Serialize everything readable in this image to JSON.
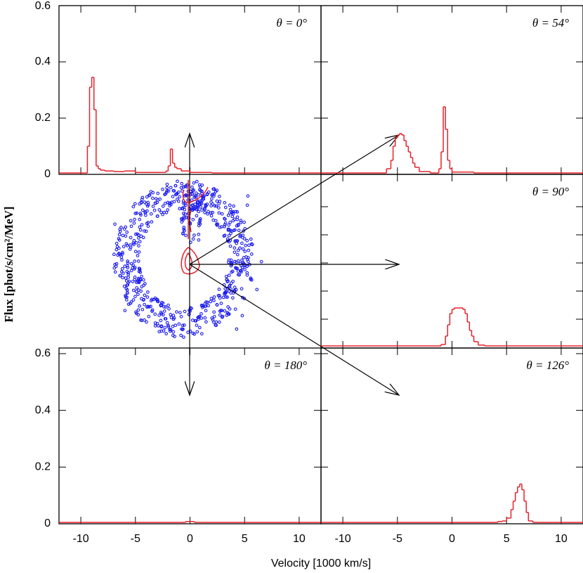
{
  "figure": {
    "xlabel": "Velocity [1000 km/s]",
    "ylabel": "Flux [phot/s/cm²/MeV]"
  },
  "chart_data": [
    {
      "type": "line",
      "step": true,
      "annotation": "θ = 0°",
      "x": [
        -12,
        -9.4,
        -9.2,
        -9.0,
        -8.8,
        -8.6,
        -8.4,
        -8.2,
        -7.8,
        -7.0,
        -6.0,
        -5.0,
        -2.2,
        -2.0,
        -1.8,
        -1.6,
        -1.4,
        -1.2,
        -0.8,
        0.0,
        2
      ],
      "series": [
        {
          "color": "#e8202a",
          "values": [
            0.005,
            0.1,
            0.31,
            0.345,
            0.23,
            0.03,
            0.02,
            0.015,
            0.012,
            0.01,
            0.012,
            0.007,
            0.012,
            0.03,
            0.09,
            0.04,
            0.025,
            0.02,
            0.012,
            0.007,
            0.005
          ]
        }
      ],
      "xlim": [
        -12,
        12
      ],
      "xticks": [
        -10,
        -5,
        0,
        5,
        10
      ],
      "xtick_labels": false,
      "ylim": [
        0,
        0.6
      ],
      "yticks": [
        0,
        0.2,
        0.4,
        0.6
      ],
      "ytick_labels": true
    },
    {
      "type": "line",
      "step": true,
      "annotation": "θ = 54°",
      "x": [
        -12,
        -6.0,
        -5.6,
        -5.4,
        -5.2,
        -5.0,
        -4.8,
        -4.6,
        -4.4,
        -4.2,
        -4.0,
        -3.8,
        -3.6,
        -3.4,
        -3.0,
        -2.0,
        -1.2,
        -1.0,
        -0.8,
        -0.6,
        -0.4,
        -0.2,
        0.0,
        2.0
      ],
      "series": [
        {
          "color": "#e8202a",
          "values": [
            0.005,
            0.02,
            0.05,
            0.1,
            0.13,
            0.14,
            0.145,
            0.14,
            0.12,
            0.1,
            0.08,
            0.06,
            0.04,
            0.025,
            0.01,
            0.005,
            0.02,
            0.08,
            0.24,
            0.16,
            0.05,
            0.02,
            0.008,
            0.005
          ]
        }
      ],
      "xlim": [
        -12,
        12
      ],
      "xticks": [
        -10,
        -5,
        0,
        5,
        10
      ],
      "xtick_labels": false,
      "ylim": [
        0,
        0.6
      ],
      "yticks": [
        0,
        0.2,
        0.4,
        0.6
      ],
      "ytick_labels": false
    },
    {
      "type": "line",
      "step": true,
      "annotation": "θ = 90°",
      "x": [
        -12,
        -1.0,
        -0.6,
        -0.4,
        -0.2,
        0.0,
        0.2,
        0.6,
        1.0,
        1.2,
        1.4,
        1.6,
        1.8,
        2.0,
        2.4,
        3.0
      ],
      "series": [
        {
          "color": "#e8202a",
          "values": [
            0.005,
            0.01,
            0.04,
            0.08,
            0.12,
            0.135,
            0.14,
            0.14,
            0.135,
            0.12,
            0.09,
            0.06,
            0.04,
            0.02,
            0.008,
            0.005
          ]
        }
      ],
      "xlim": [
        -12,
        12
      ],
      "xticks": [
        -10,
        -5,
        0,
        5,
        10
      ],
      "xtick_labels": false,
      "ylim": [
        0,
        0.6
      ],
      "yticks": [
        0.1,
        0.2,
        0.3,
        0.4,
        0.5
      ],
      "ytick_labels": false
    },
    {
      "type": "line",
      "step": true,
      "annotation": "θ = 180°",
      "x": [
        -12,
        -0.4,
        0.4
      ],
      "series": [
        {
          "color": "#e8202a",
          "values": [
            0.005,
            0.008,
            0.005
          ]
        }
      ],
      "xlim": [
        -12,
        12
      ],
      "xticks": [
        -10,
        -5,
        0,
        5,
        10
      ],
      "xtick_labels": true,
      "ylim": [
        0,
        0.6
      ],
      "yticks": [
        0,
        0.2,
        0.4,
        0.6
      ],
      "ytick_labels": true
    },
    {
      "type": "line",
      "step": true,
      "annotation": "θ = 126°",
      "x": [
        -12,
        4.2,
        4.6,
        5.0,
        5.4,
        5.6,
        5.8,
        6.0,
        6.2,
        6.4,
        6.6,
        6.8,
        7.0,
        7.4
      ],
      "series": [
        {
          "color": "#e8202a",
          "values": [
            0.005,
            0.008,
            0.01,
            0.02,
            0.05,
            0.08,
            0.11,
            0.13,
            0.14,
            0.12,
            0.08,
            0.04,
            0.01,
            0.005
          ]
        }
      ],
      "xlim": [
        -12,
        12
      ],
      "xticks": [
        -10,
        -5,
        0,
        5,
        10
      ],
      "xtick_labels": true,
      "ylim": [
        0,
        0.6
      ],
      "yticks": [
        0,
        0.2,
        0.4,
        0.6
      ],
      "ytick_labels": false
    }
  ]
}
